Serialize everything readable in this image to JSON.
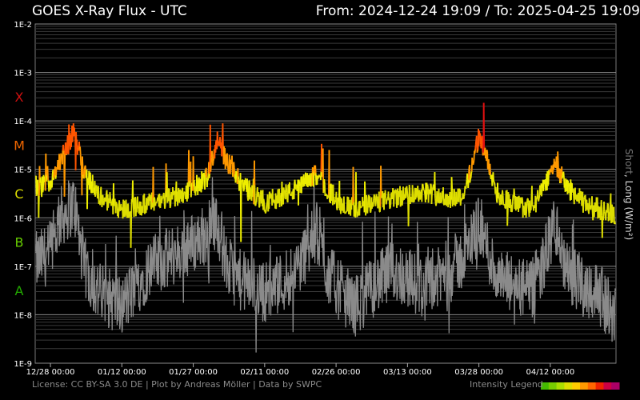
{
  "header": {
    "title": "GOES X-Ray Flux - UTC",
    "range": "From: 2024-12-24 19:09  /  To: 2025-04-25 19:09"
  },
  "footer": {
    "license": "License: CC BY-SA 3.0 DE | Plot by Andreas Möller | Data by SWPC",
    "legend_label": "Intensity Legend",
    "legend_colors": [
      "#44bb00",
      "#77cc00",
      "#aadd00",
      "#dddd00",
      "#ffcc00",
      "#ff9900",
      "#ff6600",
      "#ee2200",
      "#cc0044",
      "#aa0066"
    ]
  },
  "chart_data": {
    "type": "line",
    "title": "GOES X-Ray Flux - UTC",
    "ylabel_short": "Short",
    "ylabel_long": ", Long (W/m²)",
    "yscale": "log",
    "ylim": [
      1e-09,
      0.01
    ],
    "y_ticks": [
      "1E-2",
      "1E-3",
      "1E-4",
      "1E-5",
      "1E-6",
      "1E-7",
      "1E-8",
      "1E-9"
    ],
    "x_ticks": [
      "12/28 00:00",
      "01/12 00:00",
      "01/27 00:00",
      "02/11 00:00",
      "02/26 00:00",
      "03/13 00:00",
      "03/28 00:00",
      "04/12 00:00"
    ],
    "xlim": [
      "2024-12-24 19:09",
      "2025-04-25 19:09"
    ],
    "flare_classes": [
      {
        "label": "X",
        "color": "#d01010"
      },
      {
        "label": "M",
        "color": "#ee6600"
      },
      {
        "label": "C",
        "color": "#dddd00"
      },
      {
        "label": "B",
        "color": "#66cc00"
      },
      {
        "label": "A",
        "color": "#22aa00"
      }
    ],
    "grid": true,
    "series": [
      {
        "name": "Long",
        "color_by_intensity": true,
        "x": [
          "2024-12-24",
          "2024-12-28",
          "2024-12-30",
          "2025-01-02",
          "2025-01-04",
          "2025-01-07",
          "2025-01-12",
          "2025-01-18",
          "2025-01-22",
          "2025-01-27",
          "2025-01-30",
          "2025-02-01",
          "2025-02-03",
          "2025-02-06",
          "2025-02-11",
          "2025-02-15",
          "2025-02-18",
          "2025-02-22",
          "2025-02-24",
          "2025-02-27",
          "2025-03-02",
          "2025-03-06",
          "2025-03-10",
          "2025-03-13",
          "2025-03-17",
          "2025-03-21",
          "2025-03-25",
          "2025-03-28",
          "2025-04-01",
          "2025-04-05",
          "2025-04-08",
          "2025-04-10",
          "2025-04-13",
          "2025-04-15",
          "2025-04-19",
          "2025-04-22",
          "2025-04-25"
        ],
        "y": [
          3e-06,
          6e-06,
          1.5e-05,
          6e-05,
          1e-05,
          3e-06,
          1.5e-06,
          2e-06,
          2.5e-06,
          4e-06,
          7e-06,
          4e-05,
          1.5e-05,
          5e-06,
          2e-06,
          3e-06,
          4e-06,
          8e-06,
          4e-06,
          2e-06,
          1.5e-06,
          2e-06,
          2.5e-06,
          3e-06,
          3.5e-06,
          2.5e-06,
          3e-06,
          5e-05,
          3e-06,
          1.8e-06,
          1.5e-06,
          3e-06,
          1.5e-05,
          5e-06,
          2e-06,
          1.6e-06,
          1.2e-06
        ]
      },
      {
        "name": "Short",
        "color": "#8a8a8a",
        "x": [
          "2024-12-24",
          "2024-12-28",
          "2024-12-30",
          "2025-01-02",
          "2025-01-04",
          "2025-01-07",
          "2025-01-12",
          "2025-01-18",
          "2025-01-22",
          "2025-01-27",
          "2025-01-30",
          "2025-02-01",
          "2025-02-03",
          "2025-02-06",
          "2025-02-11",
          "2025-02-15",
          "2025-02-18",
          "2025-02-22",
          "2025-02-24",
          "2025-02-27",
          "2025-03-02",
          "2025-03-06",
          "2025-03-10",
          "2025-03-13",
          "2025-03-17",
          "2025-03-21",
          "2025-03-25",
          "2025-03-28",
          "2025-04-01",
          "2025-04-05",
          "2025-04-08",
          "2025-04-10",
          "2025-04-13",
          "2025-04-15",
          "2025-04-19",
          "2025-04-22",
          "2025-04-25"
        ],
        "y": [
          1e-07,
          2e-07,
          1e-06,
          2e-06,
          1e-07,
          3e-08,
          1.5e-08,
          1e-07,
          1.5e-07,
          3e-07,
          5e-07,
          1e-06,
          1e-07,
          5e-08,
          3e-08,
          5e-08,
          1e-07,
          5e-07,
          8e-08,
          3e-08,
          1.5e-08,
          4e-08,
          8e-08,
          6e-08,
          3e-08,
          8e-08,
          1.5e-07,
          8e-07,
          5e-08,
          4e-08,
          3e-08,
          8e-08,
          8e-07,
          8e-08,
          4e-08,
          3e-08,
          1e-08
        ]
      }
    ]
  }
}
